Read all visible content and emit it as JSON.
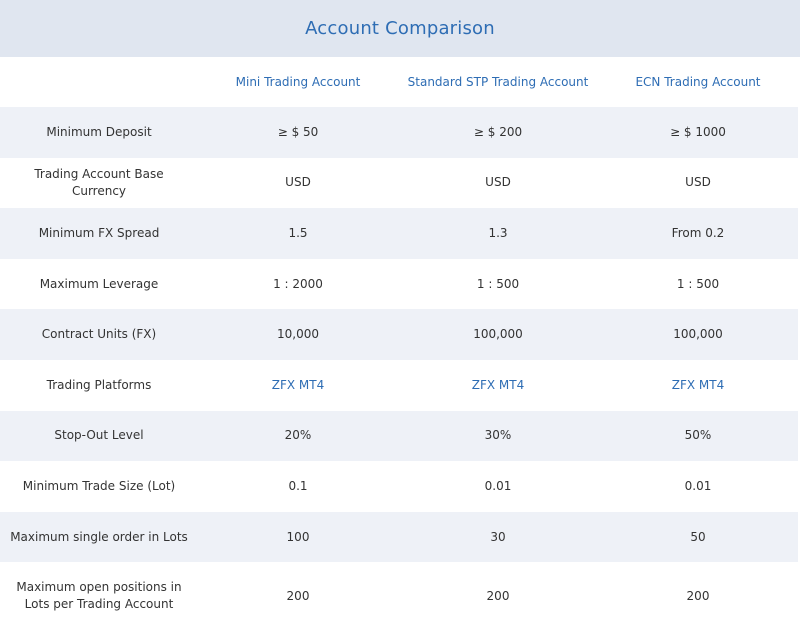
{
  "title": "Account Comparison",
  "columns": [
    "",
    "Mini Trading Account",
    "Standard STP Trading Account",
    "ECN Trading Account"
  ],
  "rows": [
    {
      "label": "Minimum Deposit",
      "values": [
        "≥ $ 50",
        "≥ $ 200",
        "≥ $ 1000"
      ],
      "link": false
    },
    {
      "label": "Trading Account Base Currency",
      "values": [
        "USD",
        "USD",
        "USD"
      ],
      "link": false
    },
    {
      "label": "Minimum FX Spread",
      "values": [
        "1.5",
        "1.3",
        "From 0.2"
      ],
      "link": false
    },
    {
      "label": "Maximum Leverage",
      "values": [
        "1 : 2000",
        "1 : 500",
        "1 : 500"
      ],
      "link": false
    },
    {
      "label": "Contract Units (FX)",
      "values": [
        "10,000",
        "100,000",
        "100,000"
      ],
      "link": false
    },
    {
      "label": "Trading Platforms",
      "values": [
        "ZFX MT4",
        "ZFX MT4",
        "ZFX MT4"
      ],
      "link": true
    },
    {
      "label": "Stop-Out Level",
      "values": [
        "20%",
        "30%",
        "50%"
      ],
      "link": false
    },
    {
      "label": "Minimum Trade Size (Lot)",
      "values": [
        "0.1",
        "0.01",
        "0.01"
      ],
      "link": false
    },
    {
      "label": "Maximum single order in Lots",
      "values": [
        "100",
        "30",
        "50"
      ],
      "link": false
    },
    {
      "label": "Maximum open positions in Lots per Trading Account",
      "values": [
        "200",
        "200",
        "200"
      ],
      "link": false
    }
  ],
  "colors": {
    "accent": "#2e6db4",
    "title_bg": "#e0e6f0",
    "row_alt_bg": "#eef1f7",
    "text": "#333333"
  }
}
